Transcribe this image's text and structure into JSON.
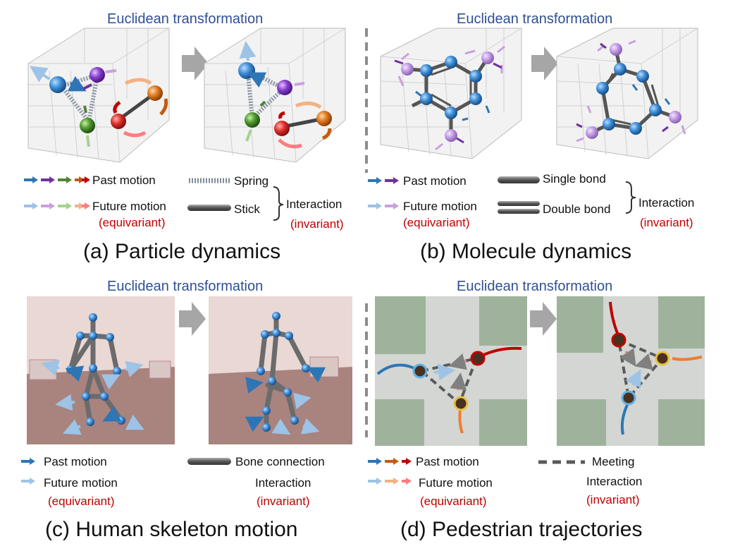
{
  "headers": {
    "a": "Euclidean transformation",
    "b": "Euclidean transformation",
    "c": "Euclidean transformation",
    "d": "Euclidean transformation"
  },
  "panel_a": {
    "caption": "(a) Particle dynamics",
    "past": "Past motion",
    "future": "Future motion",
    "equivariant": "(equivariant)",
    "spring": "Spring",
    "stick": "Stick",
    "interaction": "Interaction",
    "invariant": "(invariant)"
  },
  "panel_b": {
    "caption": "(b) Molecule dynamics",
    "past": "Past motion",
    "future": "Future motion",
    "equivariant": "(equivariant)",
    "single": "Single bond",
    "double": "Double bond",
    "interaction": "Interaction",
    "invariant": "(invariant)"
  },
  "panel_c": {
    "caption": "(c) Human skeleton motion",
    "past": "Past motion",
    "future": "Future motion",
    "equivariant": "(equivariant)",
    "bone": "Bone connection",
    "interaction": "Interaction",
    "invariant": "(invariant)"
  },
  "panel_d": {
    "caption": "(d) Pedestrian trajectories",
    "past": "Past motion",
    "future": "Future motion",
    "equivariant": "(equivariant)",
    "meeting": "Meeting",
    "interaction": "Interaction",
    "invariant": "(invariant)"
  },
  "colors": {
    "header": "#2f4f93",
    "invariant_text": "#c00000",
    "past_blue": "#2e75b6",
    "future_blue": "#9dc3e6",
    "past_purple": "#7030a0",
    "future_purple": "#c9a0e0",
    "past_green": "#548235",
    "future_green": "#a9d18e",
    "past_orange": "#c55a11",
    "future_orange": "#f4b183",
    "past_red": "#c00000",
    "future_red": "#ff7c80"
  }
}
